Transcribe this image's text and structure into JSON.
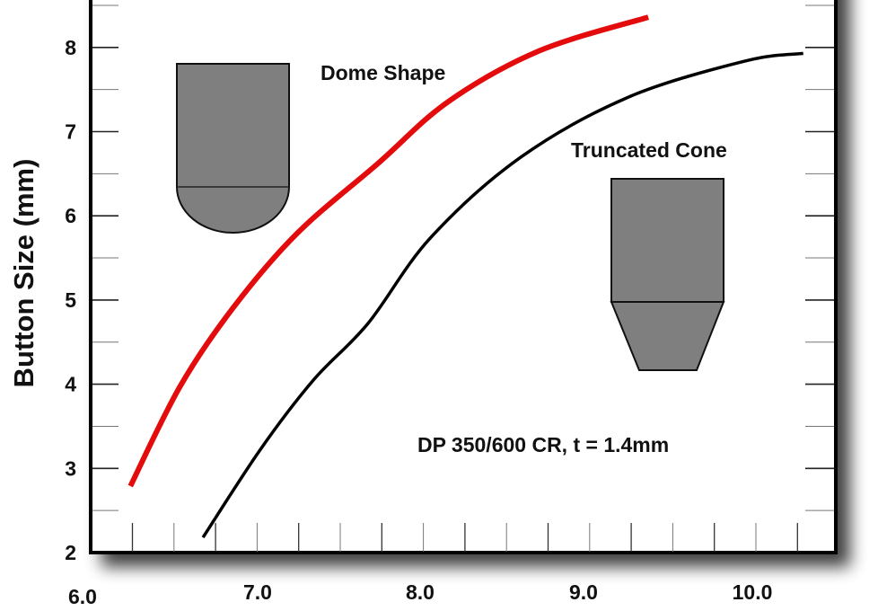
{
  "chart_data": {
    "type": "line",
    "title": "",
    "xlabel": "",
    "ylabel": "Button Size (mm)",
    "xlim": [
      6.0,
      10.5
    ],
    "ylim": [
      2,
      8.65
    ],
    "x_ticks": [
      "6.0",
      "7.0",
      "8.0",
      "9.0",
      "10.0"
    ],
    "y_ticks": [
      "2",
      "3",
      "4",
      "5",
      "6",
      "7",
      "8"
    ],
    "grid": false,
    "legend": "inline annotations",
    "series": [
      {
        "name": "Dome Shape",
        "color": "#e30b0b",
        "x": [
          6.23,
          6.53,
          6.85,
          7.24,
          7.73,
          8.16,
          8.71,
          9.37
        ],
        "y": [
          2.79,
          3.97,
          4.9,
          5.79,
          6.62,
          7.36,
          7.96,
          8.36
        ]
      },
      {
        "name": "Truncated Cone",
        "color": "#000000",
        "x": [
          6.67,
          7.02,
          7.34,
          7.67,
          8.05,
          8.6,
          9.25,
          9.96,
          10.31
        ],
        "y": [
          2.18,
          3.23,
          4.05,
          4.72,
          5.74,
          6.7,
          7.41,
          7.84,
          7.93
        ]
      }
    ],
    "annotations": [
      {
        "text": "Dome Shape",
        "x": 7.66,
        "y": 8.25
      },
      {
        "text": "Truncated Cone",
        "x": 9.15,
        "y": 7.1
      },
      {
        "text": "DP 350/600 CR, t = 1.4mm",
        "x": 8.63,
        "y": 3.28
      }
    ]
  },
  "labels": {
    "ylabel": "Button Size (mm)",
    "dome_label": "Dome Shape",
    "cone_label": "Truncated Cone",
    "condition_label": "DP 350/600 CR, t = 1.4mm",
    "x_tick_labels": [
      "6.0",
      "7.0",
      "8.0",
      "9.0",
      "10.0"
    ],
    "y_tick_labels": [
      "2",
      "3",
      "4",
      "5",
      "6",
      "7",
      "8"
    ]
  },
  "icons": {
    "dome": "dome-button-shape-icon",
    "cone": "truncated-cone-button-shape-icon"
  },
  "colors": {
    "dome_curve": "#e30b0b",
    "cone_curve": "#000000",
    "shape_fill": "#7f7f7f",
    "frame": "#000000"
  }
}
